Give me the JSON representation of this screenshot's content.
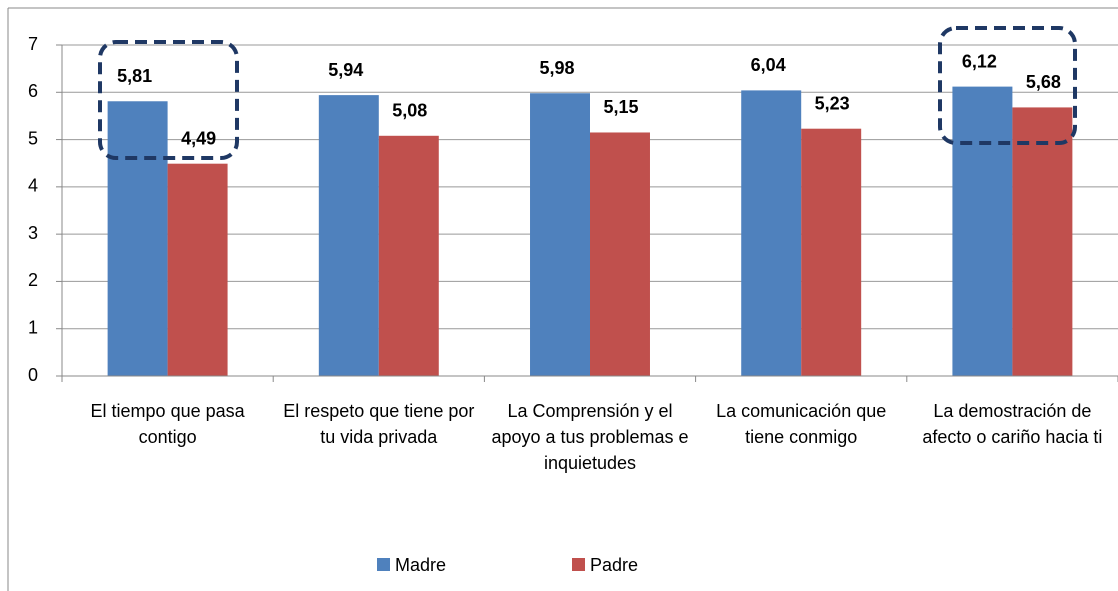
{
  "chart_data": {
    "type": "bar",
    "categories": [
      "El tiempo que pasa contigo",
      "El respeto que tiene por tu vida privada",
      "La Comprensión y el apoyo a tus problemas e inquietudes",
      "La comunicación que tiene conmigo",
      "La demostración de afecto o cariño hacia ti"
    ],
    "series": [
      {
        "name": "Madre",
        "color": "#4f81bd",
        "values": [
          5.81,
          5.94,
          5.98,
          6.04,
          6.12
        ],
        "value_labels": [
          "5,81",
          "5,94",
          "5,98",
          "6,04",
          "6,12"
        ]
      },
      {
        "name": "Padre",
        "color": "#c0504d",
        "values": [
          4.49,
          5.08,
          5.15,
          5.23,
          5.68
        ],
        "value_labels": [
          "4,49",
          "5,08",
          "5,15",
          "5,23",
          "5,68"
        ]
      }
    ],
    "ylim": [
      0,
      7
    ],
    "yticks": [
      0,
      1,
      2,
      3,
      4,
      5,
      6,
      7
    ],
    "grid": true,
    "legend": "bottom"
  }
}
